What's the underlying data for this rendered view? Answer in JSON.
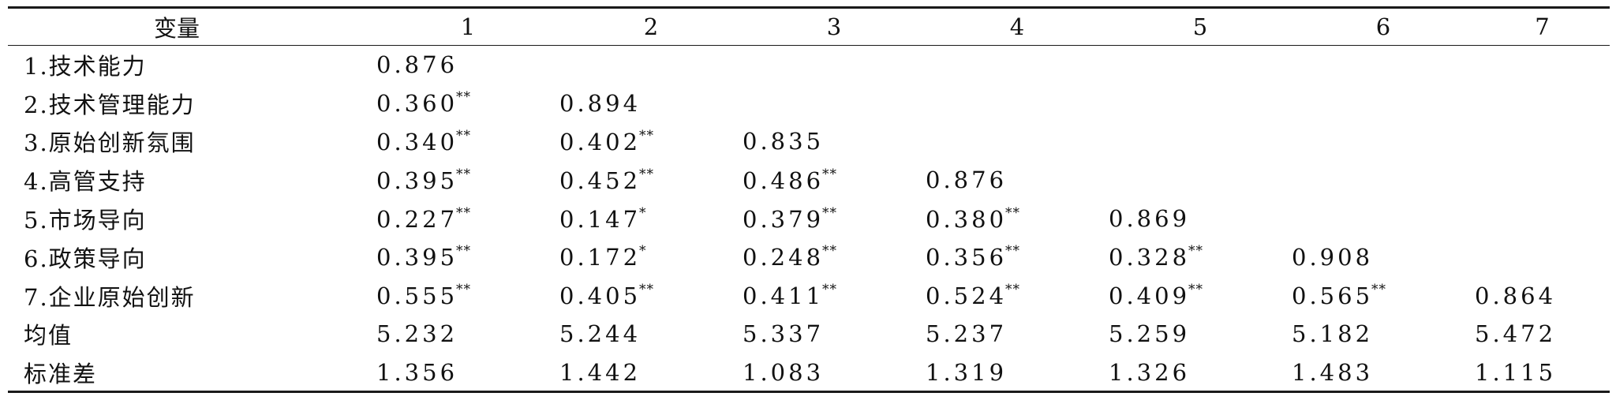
{
  "table": {
    "header": [
      "变量",
      "1",
      "2",
      "3",
      "4",
      "5",
      "6",
      "7"
    ],
    "rows": [
      {
        "label": "1.技术能力",
        "cells": [
          {
            "v": "0.876",
            "s": ""
          },
          {
            "v": "",
            "s": ""
          },
          {
            "v": "",
            "s": ""
          },
          {
            "v": "",
            "s": ""
          },
          {
            "v": "",
            "s": ""
          },
          {
            "v": "",
            "s": ""
          },
          {
            "v": "",
            "s": ""
          }
        ]
      },
      {
        "label": "2.技术管理能力",
        "cells": [
          {
            "v": "0.360",
            "s": "**"
          },
          {
            "v": "0.894",
            "s": ""
          },
          {
            "v": "",
            "s": ""
          },
          {
            "v": "",
            "s": ""
          },
          {
            "v": "",
            "s": ""
          },
          {
            "v": "",
            "s": ""
          },
          {
            "v": "",
            "s": ""
          }
        ]
      },
      {
        "label": "3.原始创新氛围",
        "cells": [
          {
            "v": "0.340",
            "s": "**"
          },
          {
            "v": "0.402",
            "s": "**"
          },
          {
            "v": "0.835",
            "s": ""
          },
          {
            "v": "",
            "s": ""
          },
          {
            "v": "",
            "s": ""
          },
          {
            "v": "",
            "s": ""
          },
          {
            "v": "",
            "s": ""
          }
        ]
      },
      {
        "label": "4.高管支持",
        "cells": [
          {
            "v": "0.395",
            "s": "**"
          },
          {
            "v": "0.452",
            "s": "**"
          },
          {
            "v": "0.486",
            "s": "**"
          },
          {
            "v": "0.876",
            "s": ""
          },
          {
            "v": "",
            "s": ""
          },
          {
            "v": "",
            "s": ""
          },
          {
            "v": "",
            "s": ""
          }
        ]
      },
      {
        "label": "5.市场导向",
        "cells": [
          {
            "v": "0.227",
            "s": "**"
          },
          {
            "v": "0.147",
            "s": "*"
          },
          {
            "v": "0.379",
            "s": "**"
          },
          {
            "v": "0.380",
            "s": "**"
          },
          {
            "v": "0.869",
            "s": ""
          },
          {
            "v": "",
            "s": ""
          },
          {
            "v": "",
            "s": ""
          }
        ]
      },
      {
        "label": "6.政策导向",
        "cells": [
          {
            "v": "0.395",
            "s": "**"
          },
          {
            "v": "0.172",
            "s": "*"
          },
          {
            "v": "0.248",
            "s": "**"
          },
          {
            "v": "0.356",
            "s": "**"
          },
          {
            "v": "0.328",
            "s": "**"
          },
          {
            "v": "0.908",
            "s": ""
          },
          {
            "v": "",
            "s": ""
          }
        ]
      },
      {
        "label": "7.企业原始创新",
        "cells": [
          {
            "v": "0.555",
            "s": "**"
          },
          {
            "v": "0.405",
            "s": "**"
          },
          {
            "v": "0.411",
            "s": "**"
          },
          {
            "v": "0.524",
            "s": "**"
          },
          {
            "v": "0.409",
            "s": "**"
          },
          {
            "v": "0.565",
            "s": "**"
          },
          {
            "v": "0.864",
            "s": ""
          }
        ]
      },
      {
        "label": "均值",
        "cells": [
          {
            "v": "5.232",
            "s": ""
          },
          {
            "v": "5.244",
            "s": ""
          },
          {
            "v": "5.337",
            "s": ""
          },
          {
            "v": "5.237",
            "s": ""
          },
          {
            "v": "5.259",
            "s": ""
          },
          {
            "v": "5.182",
            "s": ""
          },
          {
            "v": "5.472",
            "s": ""
          }
        ]
      },
      {
        "label": "标准差",
        "cells": [
          {
            "v": "1.356",
            "s": ""
          },
          {
            "v": "1.442",
            "s": ""
          },
          {
            "v": "1.083",
            "s": ""
          },
          {
            "v": "1.319",
            "s": ""
          },
          {
            "v": "1.326",
            "s": ""
          },
          {
            "v": "1.483",
            "s": ""
          },
          {
            "v": "1.115",
            "s": ""
          }
        ]
      }
    ]
  }
}
